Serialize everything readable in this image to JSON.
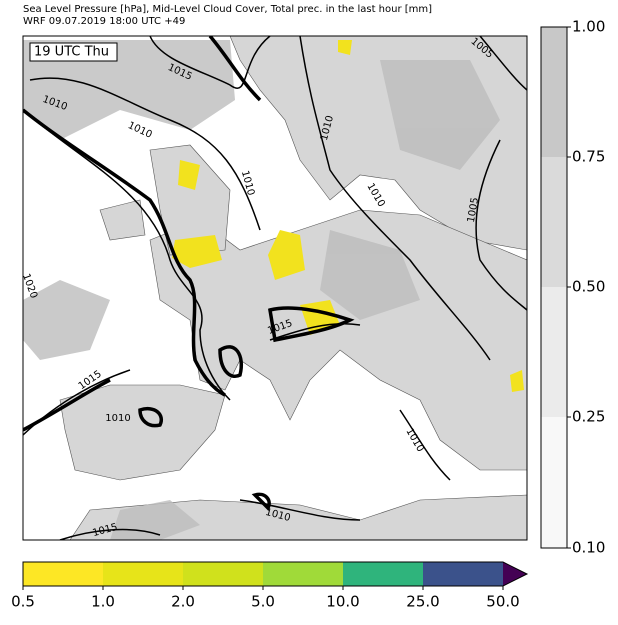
{
  "header": {
    "title_line1": "Sea Level Pressure [hPa], Mid-Level Cloud Cover, Total prec. in the last hour [mm]",
    "title_line2": "WRF 09.07.2019 18:00 UTC +49"
  },
  "map": {
    "time_label": "19 UTC Thu",
    "isobar_labels": [
      "1015",
      "1010",
      "1010",
      "1005",
      "1010",
      "1010",
      "1010",
      "1005",
      "1020",
      "1015",
      "1015",
      "1010",
      "1010",
      "1010",
      "1015"
    ]
  },
  "cloud_colorbar": {
    "labels": [
      "1.00",
      "0.75",
      "0.50",
      "0.25",
      "0.10"
    ]
  },
  "precip_colorbar": {
    "labels": [
      "0.5",
      "1.0",
      "2.0",
      "5.0",
      "10.0",
      "25.0",
      "50.0"
    ]
  }
}
